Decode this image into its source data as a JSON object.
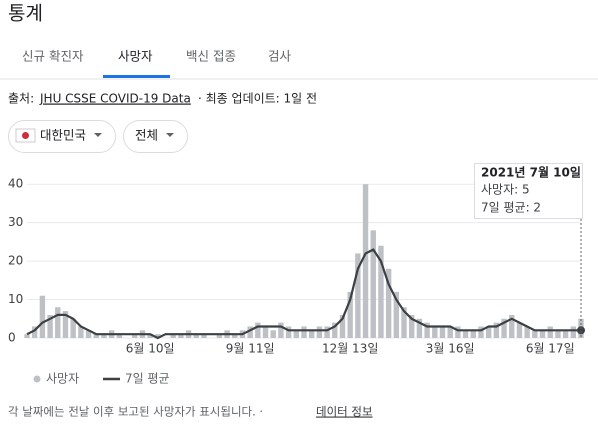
{
  "header": {
    "title": "통계"
  },
  "tabs": [
    "신규 확진자",
    "사망자",
    "백신 접종",
    "검사"
  ],
  "source": {
    "prefix": "출처:",
    "link": "JHU CSSE COVID-19 Data",
    "updated": "· 최종 업데이트: 1일 전"
  },
  "filters": [
    "대한민국",
    "전체"
  ],
  "chart_data": {
    "type": "bar_line",
    "categories": [
      null,
      null,
      null,
      null,
      null,
      null,
      null,
      null,
      null,
      null,
      null,
      null,
      null,
      null,
      null,
      null,
      "6월 10일",
      null,
      null,
      null,
      null,
      null,
      null,
      null,
      null,
      null,
      null,
      null,
      null,
      "9월 11일",
      null,
      null,
      null,
      null,
      null,
      null,
      null,
      null,
      null,
      null,
      null,
      null,
      "12월 13일",
      null,
      null,
      null,
      null,
      null,
      null,
      null,
      null,
      null,
      null,
      null,
      null,
      "3월 16일",
      null,
      null,
      null,
      null,
      null,
      null,
      null,
      null,
      null,
      null,
      null,
      null,
      "6월 17일",
      null,
      null,
      null,
      null
    ],
    "series": [
      {
        "name": "사망자",
        "color": "#bdc1c6",
        "values": [
          1,
          3,
          11,
          6,
          8,
          7,
          5,
          3,
          2,
          1,
          1,
          2,
          1,
          0,
          1,
          2,
          1,
          1,
          0,
          1,
          1,
          2,
          1,
          1,
          0,
          1,
          2,
          1,
          2,
          3,
          4,
          3,
          2,
          4,
          3,
          2,
          3,
          2,
          3,
          3,
          4,
          6,
          12,
          22,
          40,
          28,
          24,
          18,
          12,
          8,
          6,
          5,
          4,
          3,
          3,
          3,
          3,
          2,
          2,
          3,
          3,
          4,
          5,
          6,
          4,
          3,
          2,
          2,
          3,
          2,
          2,
          3,
          5
        ]
      },
      {
        "name": "7일 평균",
        "color": "#3c4043",
        "values": [
          1,
          2,
          4,
          5,
          6,
          6,
          5,
          3,
          2,
          1,
          1,
          1,
          1,
          1,
          1,
          1,
          1,
          0,
          1,
          1,
          1,
          1,
          1,
          1,
          1,
          1,
          1,
          1,
          1,
          2,
          3,
          3,
          3,
          3,
          2,
          2,
          2,
          2,
          2,
          2,
          3,
          5,
          10,
          18,
          22,
          23,
          20,
          14,
          10,
          7,
          5,
          4,
          3,
          3,
          3,
          3,
          2,
          2,
          2,
          2,
          3,
          3,
          4,
          5,
          4,
          3,
          2,
          2,
          2,
          2,
          2,
          2,
          2
        ]
      }
    ],
    "ylim": [
      0,
      45
    ],
    "yticks": [
      0,
      10,
      20,
      30,
      40
    ],
    "grid": true,
    "tooltip": {
      "date": "2021년 7월 10일",
      "lines": [
        "사망자: 5",
        "7일 평균: 2"
      ]
    }
  },
  "footer": {
    "note": "각 날짜에는 전날 이후 보고된 사망자가 표시됩니다. ·",
    "link": "데이터 정보"
  }
}
